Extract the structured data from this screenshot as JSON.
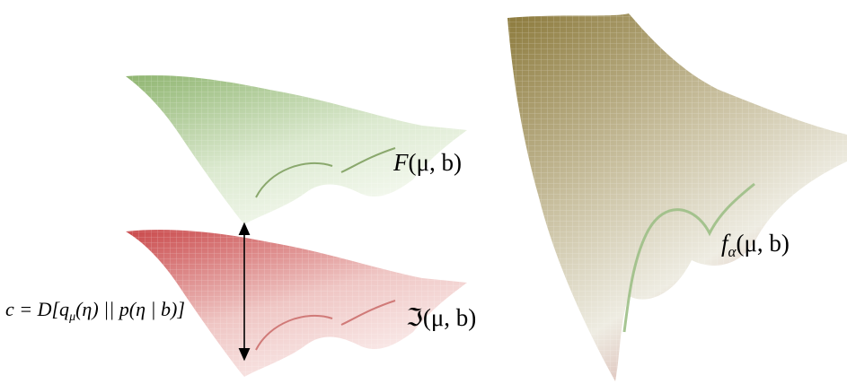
{
  "free_energy": {
    "symbol": "F",
    "args": "(μ, b)"
  },
  "bound": {
    "symbol": "ℑ",
    "args": "(μ, b)"
  },
  "alpha_energy": {
    "symbol": "f",
    "subscript": "α",
    "args": "(μ, b)"
  },
  "divergence": {
    "lhs": "c = D[q",
    "subscript": "μ",
    "rhs": "(η) || p(η | b)]"
  }
}
